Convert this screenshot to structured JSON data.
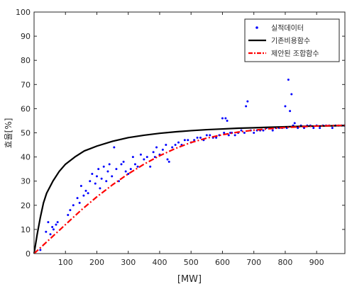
{
  "chart_data": {
    "type": "scatter",
    "title": "",
    "xlabel": "[MW]",
    "ylabel": "효율[%]",
    "xlim": [
      0,
      990
    ],
    "ylim": [
      0,
      100
    ],
    "xticks": [
      100,
      200,
      300,
      400,
      500,
      600,
      700,
      800,
      900
    ],
    "yticks": [
      0,
      10,
      20,
      30,
      40,
      50,
      60,
      70,
      80,
      90,
      100
    ],
    "grid": false,
    "legend_position": "top-right",
    "series": [
      {
        "name": "실적데이터",
        "style": "scatter",
        "color": "#0000ff",
        "x": [
          20,
          38,
          45,
          52,
          58,
          62,
          70,
          75,
          108,
          115,
          125,
          138,
          145,
          150,
          158,
          165,
          172,
          178,
          185,
          195,
          200,
          205,
          210,
          215,
          222,
          230,
          235,
          240,
          248,
          255,
          262,
          270,
          278,
          285,
          292,
          300,
          308,
          315,
          322,
          330,
          340,
          350,
          360,
          370,
          380,
          385,
          390,
          400,
          410,
          420,
          425,
          430,
          440,
          450,
          460,
          470,
          480,
          490,
          500,
          510,
          520,
          530,
          540,
          550,
          560,
          570,
          580,
          590,
          600,
          605,
          610,
          615,
          620,
          625,
          630,
          640,
          650,
          660,
          670,
          675,
          680,
          690,
          700,
          710,
          720,
          730,
          740,
          750,
          760,
          770,
          780,
          790,
          800,
          805,
          810,
          815,
          820,
          825,
          830,
          840,
          850,
          860,
          870,
          880,
          890,
          900,
          910,
          920,
          930,
          940,
          950,
          960,
          970,
          980,
          988
        ],
        "y": [
          1.5,
          9,
          13,
          8,
          11,
          10,
          12,
          13,
          16,
          18,
          20,
          23,
          21,
          28,
          24,
          26,
          25,
          30,
          33,
          29,
          32,
          35,
          27,
          31,
          36,
          30,
          34,
          37,
          32,
          44,
          35,
          30,
          37,
          38,
          34,
          33,
          35,
          40,
          37,
          36,
          41,
          39,
          40,
          36,
          42,
          40,
          44,
          41,
          43,
          45,
          39,
          38,
          44,
          45,
          46,
          45,
          47,
          47,
          46,
          47,
          48,
          48,
          47,
          49,
          49,
          48,
          48,
          49,
          56,
          50,
          56,
          55,
          49,
          50,
          50,
          49,
          50,
          51,
          50,
          61,
          63,
          51,
          50,
          51,
          51,
          51,
          52,
          52,
          51,
          52,
          52,
          52,
          61,
          52,
          72,
          59,
          66,
          53,
          54,
          52,
          53,
          52,
          53,
          53,
          52,
          53,
          52,
          53,
          53,
          53,
          52,
          53,
          53,
          53,
          53
        ]
      },
      {
        "name": "기존비용함수",
        "style": "line",
        "color": "#000000",
        "x": [
          0,
          10,
          20,
          30,
          40,
          60,
          80,
          100,
          130,
          160,
          200,
          250,
          300,
          350,
          400,
          450,
          500,
          550,
          600,
          650,
          700,
          750,
          800,
          850,
          900,
          950,
          990
        ],
        "y": [
          0,
          8,
          15,
          21,
          25,
          30,
          34,
          37,
          40,
          42.5,
          44.5,
          46.5,
          48,
          49,
          49.8,
          50.4,
          50.9,
          51.3,
          51.6,
          51.9,
          52.1,
          52.3,
          52.5,
          52.7,
          52.8,
          52.9,
          53
        ]
      },
      {
        "name": "제안된 조합함수",
        "style": "dashdot",
        "color": "#ff0000",
        "x": [
          0,
          50,
          100,
          150,
          200,
          250,
          300,
          350,
          400,
          450,
          500,
          550,
          600,
          650,
          700,
          750,
          800,
          850,
          900,
          950,
          990
        ],
        "y": [
          0,
          6,
          12,
          18,
          23.5,
          28.5,
          33,
          37,
          40.5,
          43.5,
          46,
          47.8,
          49.2,
          50.3,
          51.1,
          51.7,
          52.2,
          52.5,
          52.8,
          53,
          53.1
        ]
      }
    ]
  }
}
